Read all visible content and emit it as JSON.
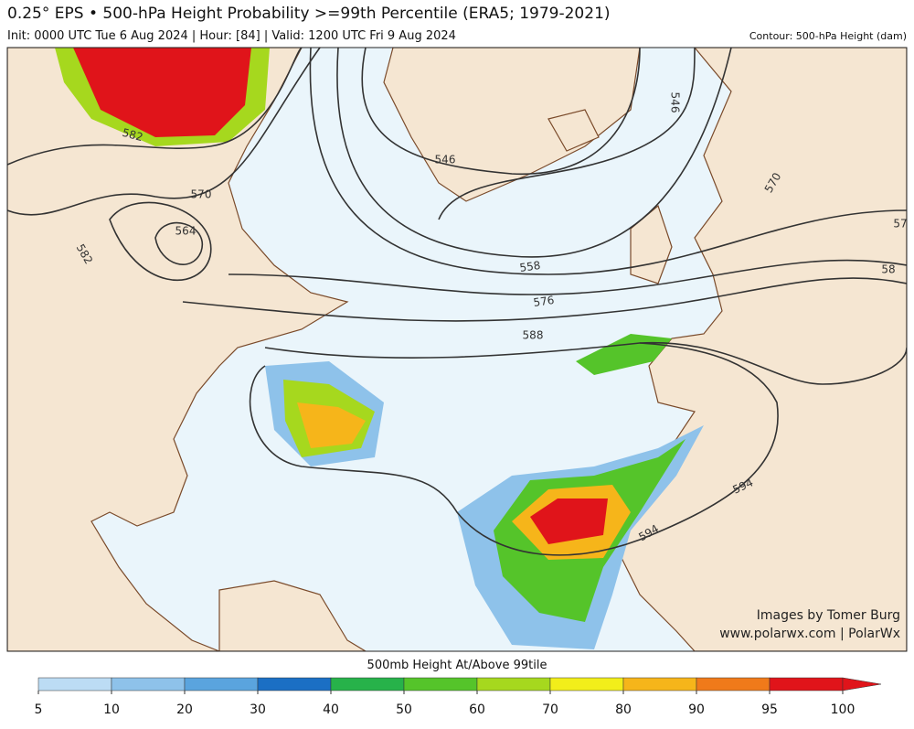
{
  "header": {
    "title": "0.25° EPS • 500-hPa Height Probability >=99th Percentile (ERA5; 1979-2021)",
    "subtitle": "Init: 0000 UTC Tue 6 Aug 2024 | Hour: [84] | Valid: 1200 UTC Fri 9 Aug 2024",
    "contour_note": "Contour: 500-hPa Height (dam)"
  },
  "map": {
    "contour_labels": [
      582,
      570,
      564,
      582,
      546,
      546,
      558,
      576,
      588,
      594,
      594,
      570,
      57,
      58
    ],
    "credits": [
      "Images by Tomer Burg",
      "www.polarwx.com | PolarWx"
    ]
  },
  "colorbar": {
    "label": "500mb Height At/Above 99tile",
    "ticks": [
      5,
      10,
      20,
      30,
      40,
      50,
      60,
      70,
      80,
      90,
      95,
      100
    ],
    "colors": [
      "#bcdcf4",
      "#8ec2ea",
      "#5aa4de",
      "#1b6fc4",
      "#27b24a",
      "#55c42a",
      "#a6d81e",
      "#f2ee1a",
      "#f6b51a",
      "#f07a1a",
      "#e0141a"
    ]
  }
}
